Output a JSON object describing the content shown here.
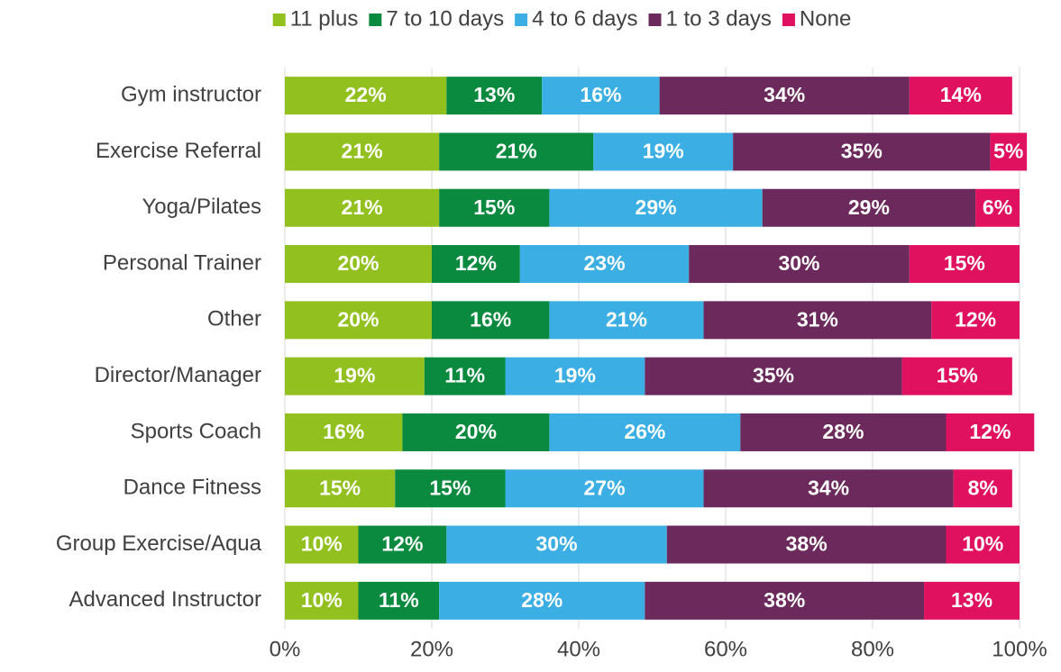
{
  "chart_data": {
    "type": "stacked_bar_horizontal",
    "categories": [
      "Gym instructor",
      "Exercise Referral",
      "Yoga/Pilates",
      "Personal Trainer",
      "Other",
      "Director/Manager",
      "Sports Coach",
      "Dance Fitness",
      "Group Exercise/Aqua",
      "Advanced Instructor"
    ],
    "series": [
      {
        "name": "11 plus",
        "color": "#92c01f",
        "values": [
          22,
          21,
          21,
          20,
          20,
          19,
          16,
          15,
          10,
          10
        ],
        "value_labels": [
          "22%",
          "21%",
          "21%",
          "20%",
          "20%",
          "19%",
          "16%",
          "15%",
          "10%",
          "10%"
        ]
      },
      {
        "name": "7 to 10 days",
        "color": "#0a8a3e",
        "values": [
          13,
          21,
          15,
          12,
          16,
          11,
          20,
          15,
          12,
          11
        ],
        "value_labels": [
          "13%",
          "21%",
          "15%",
          "12%",
          "16%",
          "11%",
          "20%",
          "15%",
          "12%",
          "11%"
        ]
      },
      {
        "name": "4 to 6 days",
        "color": "#3baee3",
        "values": [
          16,
          19,
          29,
          23,
          21,
          19,
          26,
          27,
          30,
          28
        ],
        "value_labels": [
          "16%",
          "19%",
          "29%",
          "23%",
          "21%",
          "19%",
          "26%",
          "27%",
          "30%",
          "28%"
        ]
      },
      {
        "name": "1 to 3 days",
        "color": "#6b2a5b",
        "values": [
          34,
          35,
          29,
          30,
          31,
          35,
          28,
          34,
          38,
          38
        ],
        "value_labels": [
          "34%",
          "35%",
          "29%",
          "30%",
          "31%",
          "35%",
          "28%",
          "34%",
          "38%",
          "38%"
        ]
      },
      {
        "name": "None",
        "color": "#e0115f",
        "values": [
          14,
          5,
          6,
          15,
          12,
          15,
          12,
          8,
          10,
          13
        ],
        "value_labels": [
          "14%",
          "5%",
          "6%",
          "15%",
          "12%",
          "15%",
          "12%",
          "8%",
          "10%",
          "13%"
        ]
      }
    ],
    "xlim": [
      0,
      100
    ],
    "xticks": [
      {
        "value": 0,
        "label": "0%"
      },
      {
        "value": 20,
        "label": "20%"
      },
      {
        "value": 40,
        "label": "40%"
      },
      {
        "value": 60,
        "label": "60%"
      },
      {
        "value": 80,
        "label": "80%"
      },
      {
        "value": 100,
        "label": "100%"
      }
    ],
    "grid": true,
    "legend": "top"
  }
}
